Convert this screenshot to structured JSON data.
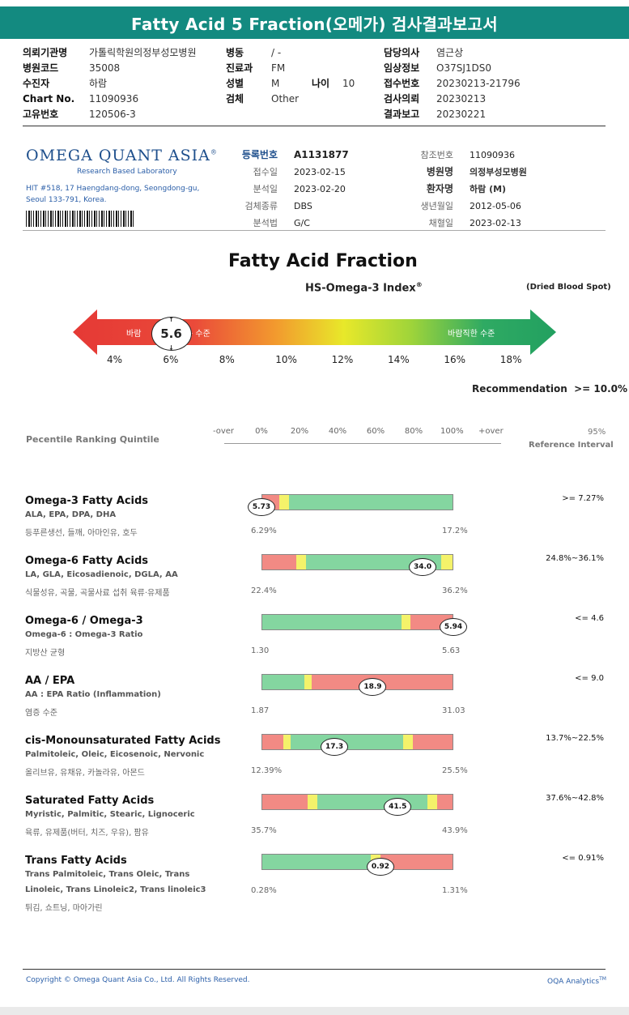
{
  "banner": "Fatty Acid 5 Fraction(오메가) 검사결과보고서",
  "hdr": {
    "l1k": "의뢰기관명",
    "l1v": "가톨릭학원의정부성모병원",
    "l2k": "병원코드",
    "l2v": "35008",
    "l3k": "수진자",
    "l3v": "하람",
    "l4k": "Chart No.",
    "l4v": "11090936",
    "l5k": "고유번호",
    "l5v": "120506-3",
    "m1k": "병동",
    "m1v": "/ -",
    "m2k": "진료과",
    "m2v": "FM",
    "m3k": "성별",
    "m3v": "M",
    "m3bk": "나이",
    "m3bv": "10",
    "m4k": "검체",
    "m4v": "Other",
    "r1k": "담당의사",
    "r1v": "염근상",
    "r2k": "임상정보",
    "r2v": "O37SJ1DS0",
    "r3k": "접수번호",
    "r3v": "20230213-21796",
    "r4k": "검사의뢰",
    "r4v": "20230213",
    "r5k": "결과보고",
    "r5v": "20230221"
  },
  "lab": {
    "logo": "OMEGA QUANT ASIA",
    "reg": "®",
    "sub": "Research Based Laboratory",
    "addr1": "HIT #518, 17 Haengdang-dong, Seongdong-gu,",
    "addr2": "Seoul 133-791, Korea."
  },
  "info": {
    "a1k": "등록번호",
    "a1v": "A1131877",
    "a2k": "접수일",
    "a2v": "2023-02-15",
    "a3k": "분석일",
    "a3v": "2023-02-20",
    "a4k": "검체종류",
    "a4v": "DBS",
    "a5k": "분석법",
    "a5v": "G/C",
    "b1k": "참조번호",
    "b1v": "11090936",
    "b2k": "병원명",
    "b2v": "의정부성모병원",
    "b3k": "환자명",
    "b3v": "하람 (M)",
    "b4k": "생년월일",
    "b4v": "2012-05-06",
    "b5k": "채혈일",
    "b5v": "2023-02-13"
  },
  "section_title": "Fatty Acid Fraction",
  "index_title": "HS-Omega-3 Index",
  "index_reg": "®",
  "sample_type": "(Dried Blood Spot)",
  "gauge": {
    "left_label_a": "바람",
    "left_label_b": "는 수준",
    "right_label": "바람직한 수준",
    "value": "5.6",
    "ticks": [
      "4%",
      "6%",
      "8%",
      "10%",
      "12%",
      "14%",
      "16%",
      "18%"
    ],
    "colors": {
      "red": "#e53935",
      "yellow": "#e8e82a",
      "green": "#2faa63"
    }
  },
  "recommendation": "Recommendation  >= 10.0%",
  "percentile": {
    "label": "Pecentile Ranking Quintile",
    "ticks": [
      "-over",
      "0%",
      "20%",
      "40%",
      "60%",
      "80%",
      "100%",
      "+over"
    ],
    "ref1": "95%",
    "ref2": "Reference Interval"
  },
  "rows": [
    {
      "title": "Omega-3 Fatty Acids",
      "sub": "ALA, EPA, DPA, DHA",
      "desc": "등푸른생선, 들깨, 아마인유, 호두",
      "min": "6.29%",
      "max": "17.2%",
      "value": "5.73",
      "ref": ">= 7.27%",
      "marker_frac": 0.0,
      "segments": [
        [
          "red",
          0.09
        ],
        [
          "yellow",
          0.05
        ],
        [
          "green",
          0.86
        ]
      ]
    },
    {
      "title": "Omega-6 Fatty Acids",
      "sub": "LA, GLA, Eicosadienoic, DGLA, AA",
      "desc": "식물성유, 곡물, 곡물사료 섭취 육류·유제품",
      "min": "22.4%",
      "max": "36.2%",
      "value": "34.0",
      "ref": "24.8%~36.1%",
      "marker_frac": 0.84,
      "segments": [
        [
          "red",
          0.18
        ],
        [
          "yellow",
          0.05
        ],
        [
          "green",
          0.71
        ],
        [
          "yellow",
          0.06
        ]
      ]
    },
    {
      "title": "Omega-6 / Omega-3",
      "sub": "Omega-6 : Omega-3 Ratio",
      "desc": "지방산 균형",
      "min": "1.30",
      "max": "5.63",
      "value": "5.94",
      "ref": "<= 4.6",
      "marker_frac": 1.0,
      "segments": [
        [
          "green",
          0.73
        ],
        [
          "yellow",
          0.05
        ],
        [
          "red",
          0.22
        ]
      ]
    },
    {
      "title": "AA / EPA",
      "sub": "AA : EPA Ratio (Inflammation)",
      "desc": "염증 수준",
      "min": "1.87",
      "max": "31.03",
      "value": "18.9",
      "ref": "<= 9.0",
      "marker_frac": 0.58,
      "segments": [
        [
          "green",
          0.22
        ],
        [
          "yellow",
          0.04
        ],
        [
          "red",
          0.74
        ]
      ]
    },
    {
      "title": "cis-Monounsaturated Fatty Acids",
      "sub": "Palmitoleic, Oleic, Eicosenoic, Nervonic",
      "desc": "올리브유, 유채유, 카놀라유, 아몬드",
      "min": "12.39%",
      "max": "25.5%",
      "value": "17.3",
      "ref": "13.7%~22.5%",
      "marker_frac": 0.38,
      "segments": [
        [
          "red",
          0.11
        ],
        [
          "yellow",
          0.04
        ],
        [
          "green",
          0.59
        ],
        [
          "yellow",
          0.05
        ],
        [
          "red",
          0.21
        ]
      ]
    },
    {
      "title": "Saturated Fatty Acids",
      "sub": "Myristic, Palmitic, Stearic, Lignoceric",
      "desc": "육류, 유제품(버터, 치즈, 우유), 팜유",
      "min": "35.7%",
      "max": "43.9%",
      "value": "41.5",
      "ref": "37.6%~42.8%",
      "marker_frac": 0.71,
      "segments": [
        [
          "red",
          0.24
        ],
        [
          "yellow",
          0.05
        ],
        [
          "green",
          0.58
        ],
        [
          "yellow",
          0.05
        ],
        [
          "red",
          0.08
        ]
      ]
    },
    {
      "title": "Trans Fatty Acids",
      "sub": "Trans Palmitoleic, Trans Oleic, Trans",
      "sub2": "Linoleic, Trans Linoleic2, Trans linoleic3",
      "desc": "튀김, 쇼트닝, 마아가린",
      "min": "0.28%",
      "max": "1.31%",
      "value": "0.92",
      "ref": "<= 0.91%",
      "marker_frac": 0.62,
      "segments": [
        [
          "green",
          0.57
        ],
        [
          "yellow",
          0.05
        ],
        [
          "red",
          0.38
        ]
      ]
    }
  ],
  "bar_colors": {
    "red": "#f28a84",
    "yellow": "#f4f26a",
    "green": "#84d6a0"
  },
  "footer": {
    "copyright": "Copyright © Omega Quant Asia Co., Ltd.  All Rights Reserved.",
    "brand": "OQA Analytics",
    "tm": "TM"
  }
}
